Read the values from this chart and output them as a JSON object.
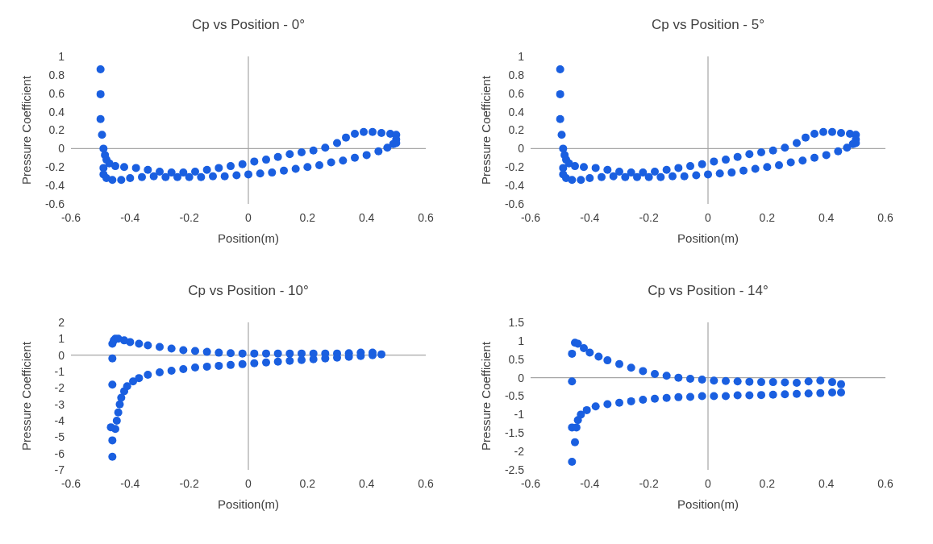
{
  "chart_data": [
    {
      "type": "scatter",
      "title": "Cp vs Position - 0°",
      "xlabel": "Position(m)",
      "ylabel": "Pressure Coefficient",
      "xlim": [
        -0.6,
        0.6
      ],
      "xticks": [
        -0.6,
        -0.4,
        -0.2,
        0,
        0.2,
        0.4,
        0.6
      ],
      "ylim": [
        -0.6,
        1
      ],
      "yticks": [
        -0.6,
        -0.4,
        -0.2,
        0,
        0.2,
        0.4,
        0.6,
        0.8,
        1
      ],
      "marker": "circle",
      "series": [
        {
          "color": "#1a5fe0",
          "x": [
            -0.5,
            -0.5,
            -0.5,
            -0.495,
            -0.49,
            -0.485,
            -0.48,
            -0.47,
            -0.45,
            -0.42,
            -0.38,
            -0.34,
            -0.3,
            -0.26,
            -0.22,
            -0.18,
            -0.14,
            -0.1,
            -0.06,
            -0.02,
            0.02,
            0.06,
            0.1,
            0.14,
            0.18,
            0.22,
            0.26,
            0.3,
            0.33,
            0.36,
            0.39,
            0.42,
            0.45,
            0.48,
            0.5,
            0.5,
            0.5,
            -0.49,
            -0.49,
            -0.48,
            -0.46,
            -0.43,
            -0.4,
            -0.36,
            -0.32,
            -0.28,
            -0.24,
            -0.2,
            -0.16,
            -0.12,
            -0.08,
            -0.04,
            0,
            0.04,
            0.08,
            0.12,
            0.16,
            0.2,
            0.24,
            0.28,
            0.32,
            0.36,
            0.4,
            0.44,
            0.47,
            0.49
          ],
          "values": [
            0.86,
            0.59,
            0.32,
            0.15,
            0,
            -0.07,
            -0.12,
            -0.16,
            -0.19,
            -0.2,
            -0.21,
            -0.23,
            -0.25,
            -0.26,
            -0.26,
            -0.25,
            -0.23,
            -0.21,
            -0.19,
            -0.17,
            -0.14,
            -0.12,
            -0.09,
            -0.06,
            -0.04,
            -0.02,
            0.01,
            0.06,
            0.12,
            0.16,
            0.18,
            0.18,
            0.17,
            0.16,
            0.15,
            0.1,
            0.06,
            -0.21,
            -0.28,
            -0.32,
            -0.34,
            -0.34,
            -0.32,
            -0.31,
            -0.3,
            -0.31,
            -0.31,
            -0.31,
            -0.31,
            -0.3,
            -0.3,
            -0.29,
            -0.28,
            -0.27,
            -0.26,
            -0.24,
            -0.22,
            -0.2,
            -0.18,
            -0.15,
            -0.13,
            -0.1,
            -0.07,
            -0.03,
            0.01,
            0.05
          ]
        }
      ]
    },
    {
      "type": "scatter",
      "title": "Cp vs Position - 5°",
      "xlabel": "Position(m)",
      "ylabel": "Pressure Coefficient",
      "xlim": [
        -0.6,
        0.6
      ],
      "xticks": [
        -0.6,
        -0.4,
        -0.2,
        0,
        0.2,
        0.4,
        0.6
      ],
      "ylim": [
        -0.6,
        1
      ],
      "yticks": [
        -0.6,
        -0.4,
        -0.2,
        0,
        0.2,
        0.4,
        0.6,
        0.8,
        1
      ],
      "marker": "circle",
      "series": [
        {
          "color": "#1a5fe0",
          "x": [
            -0.5,
            -0.5,
            -0.5,
            -0.495,
            -0.49,
            -0.485,
            -0.48,
            -0.47,
            -0.45,
            -0.42,
            -0.38,
            -0.34,
            -0.3,
            -0.26,
            -0.22,
            -0.18,
            -0.14,
            -0.1,
            -0.06,
            -0.02,
            0.02,
            0.06,
            0.1,
            0.14,
            0.18,
            0.22,
            0.26,
            0.3,
            0.33,
            0.36,
            0.39,
            0.42,
            0.45,
            0.48,
            0.5,
            0.5,
            0.5,
            -0.49,
            -0.49,
            -0.48,
            -0.46,
            -0.43,
            -0.4,
            -0.36,
            -0.32,
            -0.28,
            -0.24,
            -0.2,
            -0.16,
            -0.12,
            -0.08,
            -0.04,
            0,
            0.04,
            0.08,
            0.12,
            0.16,
            0.2,
            0.24,
            0.28,
            0.32,
            0.36,
            0.4,
            0.44,
            0.47,
            0.49
          ],
          "values": [
            0.86,
            0.59,
            0.32,
            0.15,
            0,
            -0.07,
            -0.12,
            -0.16,
            -0.19,
            -0.2,
            -0.21,
            -0.23,
            -0.25,
            -0.26,
            -0.26,
            -0.25,
            -0.23,
            -0.21,
            -0.19,
            -0.17,
            -0.14,
            -0.12,
            -0.09,
            -0.06,
            -0.04,
            -0.02,
            0.01,
            0.06,
            0.12,
            0.16,
            0.18,
            0.18,
            0.17,
            0.16,
            0.15,
            0.1,
            0.06,
            -0.21,
            -0.28,
            -0.32,
            -0.34,
            -0.34,
            -0.32,
            -0.31,
            -0.3,
            -0.31,
            -0.31,
            -0.31,
            -0.31,
            -0.3,
            -0.3,
            -0.29,
            -0.28,
            -0.27,
            -0.26,
            -0.24,
            -0.22,
            -0.2,
            -0.18,
            -0.15,
            -0.13,
            -0.1,
            -0.07,
            -0.03,
            0.01,
            0.05
          ]
        }
      ]
    },
    {
      "type": "scatter",
      "title": "Cp vs Position - 10°",
      "xlabel": "Position(m)",
      "ylabel": "Pressure Coefficient",
      "xlim": [
        -0.6,
        0.6
      ],
      "xticks": [
        -0.6,
        -0.4,
        -0.2,
        0,
        0.2,
        0.4,
        0.6
      ],
      "ylim": [
        -7,
        2
      ],
      "yticks": [
        -7,
        -6,
        -5,
        -4,
        -3,
        -2,
        -1,
        0,
        1,
        2
      ],
      "marker": "circle",
      "series": [
        {
          "color": "#1a5fe0",
          "x": [
            -0.46,
            -0.455,
            -0.45,
            -0.44,
            -0.42,
            -0.4,
            -0.37,
            -0.34,
            -0.3,
            -0.26,
            -0.22,
            -0.18,
            -0.14,
            -0.1,
            -0.06,
            -0.02,
            0.02,
            0.06,
            0.1,
            0.14,
            0.18,
            0.22,
            0.26,
            0.3,
            0.34,
            0.38,
            0.42,
            0.45,
            -0.46,
            -0.46,
            -0.465,
            -0.46,
            -0.46,
            -0.45,
            -0.445,
            -0.44,
            -0.435,
            -0.43,
            -0.42,
            -0.41,
            -0.39,
            -0.37,
            -0.34,
            -0.3,
            -0.26,
            -0.22,
            -0.18,
            -0.14,
            -0.1,
            -0.06,
            -0.02,
            0.02,
            0.06,
            0.1,
            0.14,
            0.18,
            0.22,
            0.26,
            0.3,
            0.34,
            0.38,
            0.42
          ],
          "values": [
            0.7,
            0.9,
            1,
            1,
            0.9,
            0.8,
            0.7,
            0.6,
            0.5,
            0.4,
            0.3,
            0.25,
            0.2,
            0.15,
            0.12,
            0.1,
            0.1,
            0.1,
            0.1,
            0.1,
            0.1,
            0.1,
            0.1,
            0.1,
            0.12,
            0.15,
            0.15,
            0.05,
            -0.2,
            -1.8,
            -4.4,
            -5.2,
            -6.2,
            -4.5,
            -4,
            -3.5,
            -3,
            -2.6,
            -2.2,
            -1.9,
            -1.6,
            -1.4,
            -1.2,
            -1.05,
            -0.95,
            -0.85,
            -0.75,
            -0.7,
            -0.65,
            -0.6,
            -0.55,
            -0.5,
            -0.45,
            -0.4,
            -0.35,
            -0.3,
            -0.25,
            -0.2,
            -0.15,
            -0.1,
            -0.05,
            0
          ]
        }
      ]
    },
    {
      "type": "scatter",
      "title": "Cp vs Position - 14°",
      "xlabel": "Position(m)",
      "ylabel": "Pressure Coefficient",
      "xlim": [
        -0.6,
        0.6
      ],
      "xticks": [
        -0.6,
        -0.4,
        -0.2,
        0,
        0.2,
        0.4,
        0.6
      ],
      "ylim": [
        -2.5,
        1.5
      ],
      "yticks": [
        -2.5,
        -2,
        -1.5,
        -1,
        -0.5,
        0,
        0.5,
        1,
        1.5
      ],
      "marker": "circle",
      "series": [
        {
          "color": "#1a5fe0",
          "x": [
            -0.46,
            -0.45,
            -0.44,
            -0.42,
            -0.4,
            -0.37,
            -0.34,
            -0.3,
            -0.26,
            -0.22,
            -0.18,
            -0.14,
            -0.1,
            -0.06,
            -0.02,
            0.02,
            0.06,
            0.1,
            0.14,
            0.18,
            0.22,
            0.26,
            0.3,
            0.34,
            0.38,
            0.42,
            0.45,
            -0.46,
            -0.46,
            -0.45,
            -0.46,
            -0.445,
            -0.44,
            -0.43,
            -0.41,
            -0.38,
            -0.34,
            -0.3,
            -0.26,
            -0.22,
            -0.18,
            -0.14,
            -0.1,
            -0.06,
            -0.02,
            0.02,
            0.06,
            0.1,
            0.14,
            0.18,
            0.22,
            0.26,
            0.3,
            0.34,
            0.38,
            0.42,
            0.45
          ],
          "values": [
            0.65,
            0.95,
            0.92,
            0.8,
            0.68,
            0.57,
            0.47,
            0.37,
            0.27,
            0.18,
            0.1,
            0.05,
            0,
            -0.03,
            -0.05,
            -0.08,
            -0.09,
            -0.1,
            -0.11,
            -0.12,
            -0.12,
            -0.13,
            -0.14,
            -0.1,
            -0.08,
            -0.12,
            -0.18,
            -0.1,
            -1.35,
            -1.75,
            -2.28,
            -1.35,
            -1.15,
            -1,
            -0.88,
            -0.78,
            -0.72,
            -0.68,
            -0.64,
            -0.6,
            -0.57,
            -0.55,
            -0.53,
            -0.52,
            -0.5,
            -0.5,
            -0.5,
            -0.48,
            -0.48,
            -0.47,
            -0.46,
            -0.45,
            -0.44,
            -0.43,
            -0.42,
            -0.4,
            -0.4
          ]
        }
      ]
    }
  ]
}
